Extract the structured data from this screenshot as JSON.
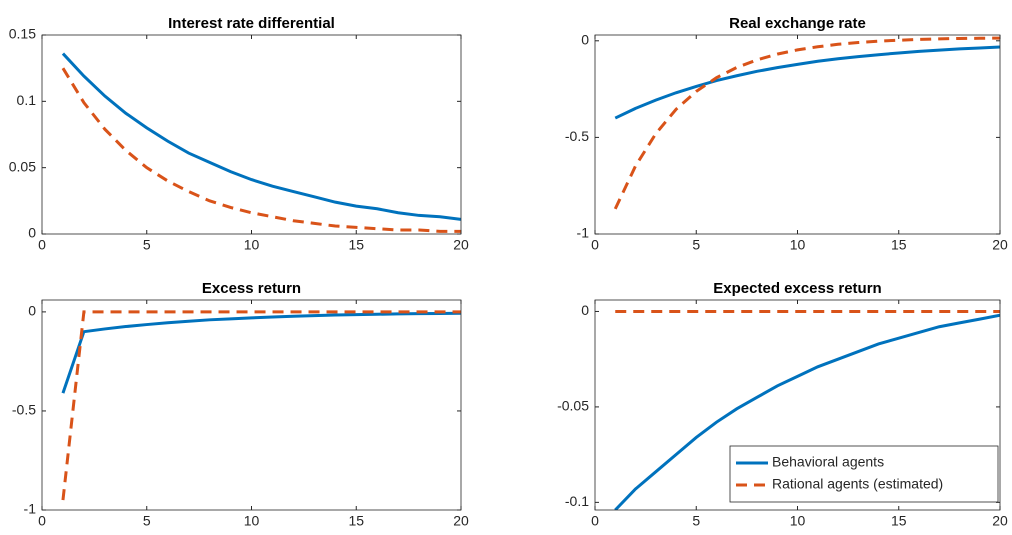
{
  "chart_data": [
    {
      "type": "line",
      "title": "Interest rate differential",
      "x": [
        1,
        2,
        3,
        4,
        5,
        6,
        7,
        8,
        9,
        10,
        11,
        12,
        13,
        14,
        15,
        16,
        17,
        18,
        19,
        20
      ],
      "series": [
        {
          "color": "#0072BD",
          "dash": false,
          "values": [
            0.136,
            0.119,
            0.104,
            0.091,
            0.08,
            0.07,
            0.061,
            0.054,
            0.047,
            0.041,
            0.036,
            0.032,
            0.028,
            0.024,
            0.021,
            0.019,
            0.016,
            0.014,
            0.013,
            0.011
          ]
        },
        {
          "color": "#D95319",
          "dash": true,
          "values": [
            0.125,
            0.099,
            0.079,
            0.063,
            0.05,
            0.04,
            0.032,
            0.025,
            0.02,
            0.016,
            0.013,
            0.01,
            0.008,
            0.006,
            0.005,
            0.004,
            0.003,
            0.003,
            0.002,
            0.002
          ]
        }
      ],
      "xlim": [
        0,
        20
      ],
      "xticks": [
        0,
        5,
        10,
        15,
        20
      ],
      "ylim": [
        0,
        0.15
      ],
      "yticks": [
        0,
        0.05,
        0.1,
        0.15
      ]
    },
    {
      "type": "line",
      "title": "Real exchange rate",
      "x": [
        1,
        2,
        3,
        4,
        5,
        6,
        7,
        8,
        9,
        10,
        11,
        12,
        13,
        14,
        15,
        16,
        17,
        18,
        19,
        20
      ],
      "series": [
        {
          "color": "#0072BD",
          "dash": false,
          "values": [
            -0.4,
            -0.35,
            -0.307,
            -0.269,
            -0.236,
            -0.206,
            -0.181,
            -0.158,
            -0.139,
            -0.122,
            -0.106,
            -0.093,
            -0.082,
            -0.072,
            -0.063,
            -0.055,
            -0.048,
            -0.042,
            -0.037,
            -0.032
          ]
        },
        {
          "color": "#D95319",
          "dash": true,
          "values": [
            -0.87,
            -0.648,
            -0.481,
            -0.355,
            -0.262,
            -0.191,
            -0.138,
            -0.099,
            -0.069,
            -0.047,
            -0.031,
            -0.018,
            -0.009,
            -0.002,
            0.003,
            0.007,
            0.01,
            0.012,
            0.013,
            0.014
          ]
        }
      ],
      "xlim": [
        0,
        20
      ],
      "xticks": [
        0,
        5,
        10,
        15,
        20
      ],
      "ylim": [
        -1,
        0.03
      ],
      "yticks": [
        -1,
        -0.5,
        0
      ]
    },
    {
      "type": "line",
      "title": "Excess return",
      "x": [
        1,
        2,
        3,
        4,
        5,
        6,
        7,
        8,
        9,
        10,
        11,
        12,
        13,
        14,
        15,
        16,
        17,
        18,
        19,
        20
      ],
      "series": [
        {
          "color": "#0072BD",
          "dash": false,
          "values": [
            -0.41,
            -0.1,
            -0.086,
            -0.074,
            -0.064,
            -0.055,
            -0.047,
            -0.04,
            -0.035,
            -0.03,
            -0.026,
            -0.022,
            -0.019,
            -0.016,
            -0.014,
            -0.012,
            -0.01,
            -0.009,
            -0.008,
            -0.007
          ]
        },
        {
          "color": "#D95319",
          "dash": true,
          "values": [
            -0.95,
            0,
            0,
            0,
            0,
            0,
            0,
            0,
            0,
            0,
            0,
            0,
            0,
            0,
            0,
            0,
            0,
            0,
            0,
            0
          ]
        }
      ],
      "xlim": [
        0,
        20
      ],
      "xticks": [
        0,
        5,
        10,
        15,
        20
      ],
      "ylim": [
        -1,
        0.06
      ],
      "yticks": [
        -1,
        -0.5,
        0
      ]
    },
    {
      "type": "line",
      "title": "Expected excess return",
      "x": [
        1,
        2,
        3,
        4,
        5,
        6,
        7,
        8,
        9,
        10,
        11,
        12,
        13,
        14,
        15,
        16,
        17,
        18,
        19,
        20
      ],
      "series": [
        {
          "name": "Behavioral agents",
          "color": "#0072BD",
          "dash": false,
          "values": [
            -0.104,
            -0.093,
            -0.084,
            -0.075,
            -0.066,
            -0.058,
            -0.051,
            -0.045,
            -0.039,
            -0.034,
            -0.029,
            -0.025,
            -0.021,
            -0.017,
            -0.014,
            -0.011,
            -0.008,
            -0.006,
            -0.004,
            -0.002
          ]
        },
        {
          "name": "Rational agents (estimated)",
          "color": "#D95319",
          "dash": true,
          "values": [
            0,
            0,
            0,
            0,
            0,
            0,
            0,
            0,
            0,
            0,
            0,
            0,
            0,
            0,
            0,
            0,
            0,
            0,
            0,
            0
          ]
        }
      ],
      "xlim": [
        0,
        20
      ],
      "xticks": [
        0,
        5,
        10,
        15,
        20
      ],
      "ylim": [
        -0.104,
        0.006
      ],
      "yticks": [
        -0.1,
        -0.05,
        0
      ],
      "legend": "lower right"
    }
  ]
}
